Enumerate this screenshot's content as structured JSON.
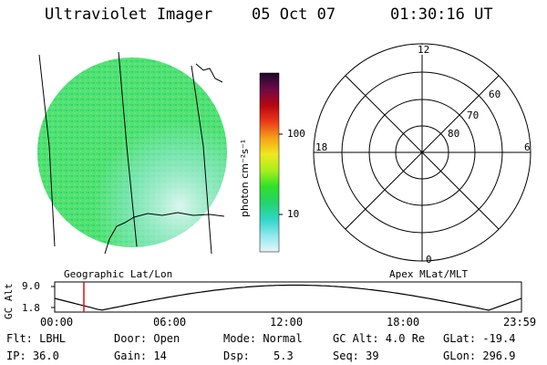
{
  "header": {
    "title": "Ultraviolet Imager",
    "date": "05 Oct 07",
    "time": "01:30:16 UT"
  },
  "colorbar": {
    "unit_label": "photon cm⁻²s⁻¹",
    "tick_labels": [
      "100",
      "10"
    ]
  },
  "polar_plot": {
    "mlt_labels": {
      "top": "12",
      "left": "18",
      "right": "6",
      "bottom": "0"
    },
    "lat_labels": [
      "60",
      "70",
      "80"
    ]
  },
  "altitude_panel": {
    "ylabel": "GC Alt",
    "y_ticks": [
      "9.0",
      "1.8"
    ],
    "x_ticks": [
      "00:00",
      "06:00",
      "12:00",
      "18:00",
      "23:59"
    ],
    "left_caption": "Geographic Lat/Lon",
    "right_caption": "Apex MLat/MLT",
    "colors": {
      "marker": "#dd1111",
      "curve": "#000000"
    }
  },
  "status": {
    "flt": "Flt: LBHL",
    "ip": "IP: 36.0",
    "door": "Door: Open",
    "gain": "Gain: 14",
    "mode": "Mode: Normal",
    "dsp_label": "Dsp:",
    "dsp_value": "5.3",
    "gc_alt": "GC Alt: 4.0 Re",
    "seq": "Seq: 39",
    "glat": "GLat: -19.4",
    "glon": "GLon: 296.9"
  },
  "colors": {
    "image_base": "#4fe27a",
    "image_light": "#b8f2e6",
    "colorbar_stops": [
      "#e4f6f8",
      "#8ee8ee",
      "#30d6c9",
      "#24d36e",
      "#2fe02a",
      "#a8ee1c",
      "#f0e81e",
      "#f5a11a",
      "#ec3a18",
      "#b80612",
      "#6e0a46",
      "#1a0a2c"
    ]
  }
}
